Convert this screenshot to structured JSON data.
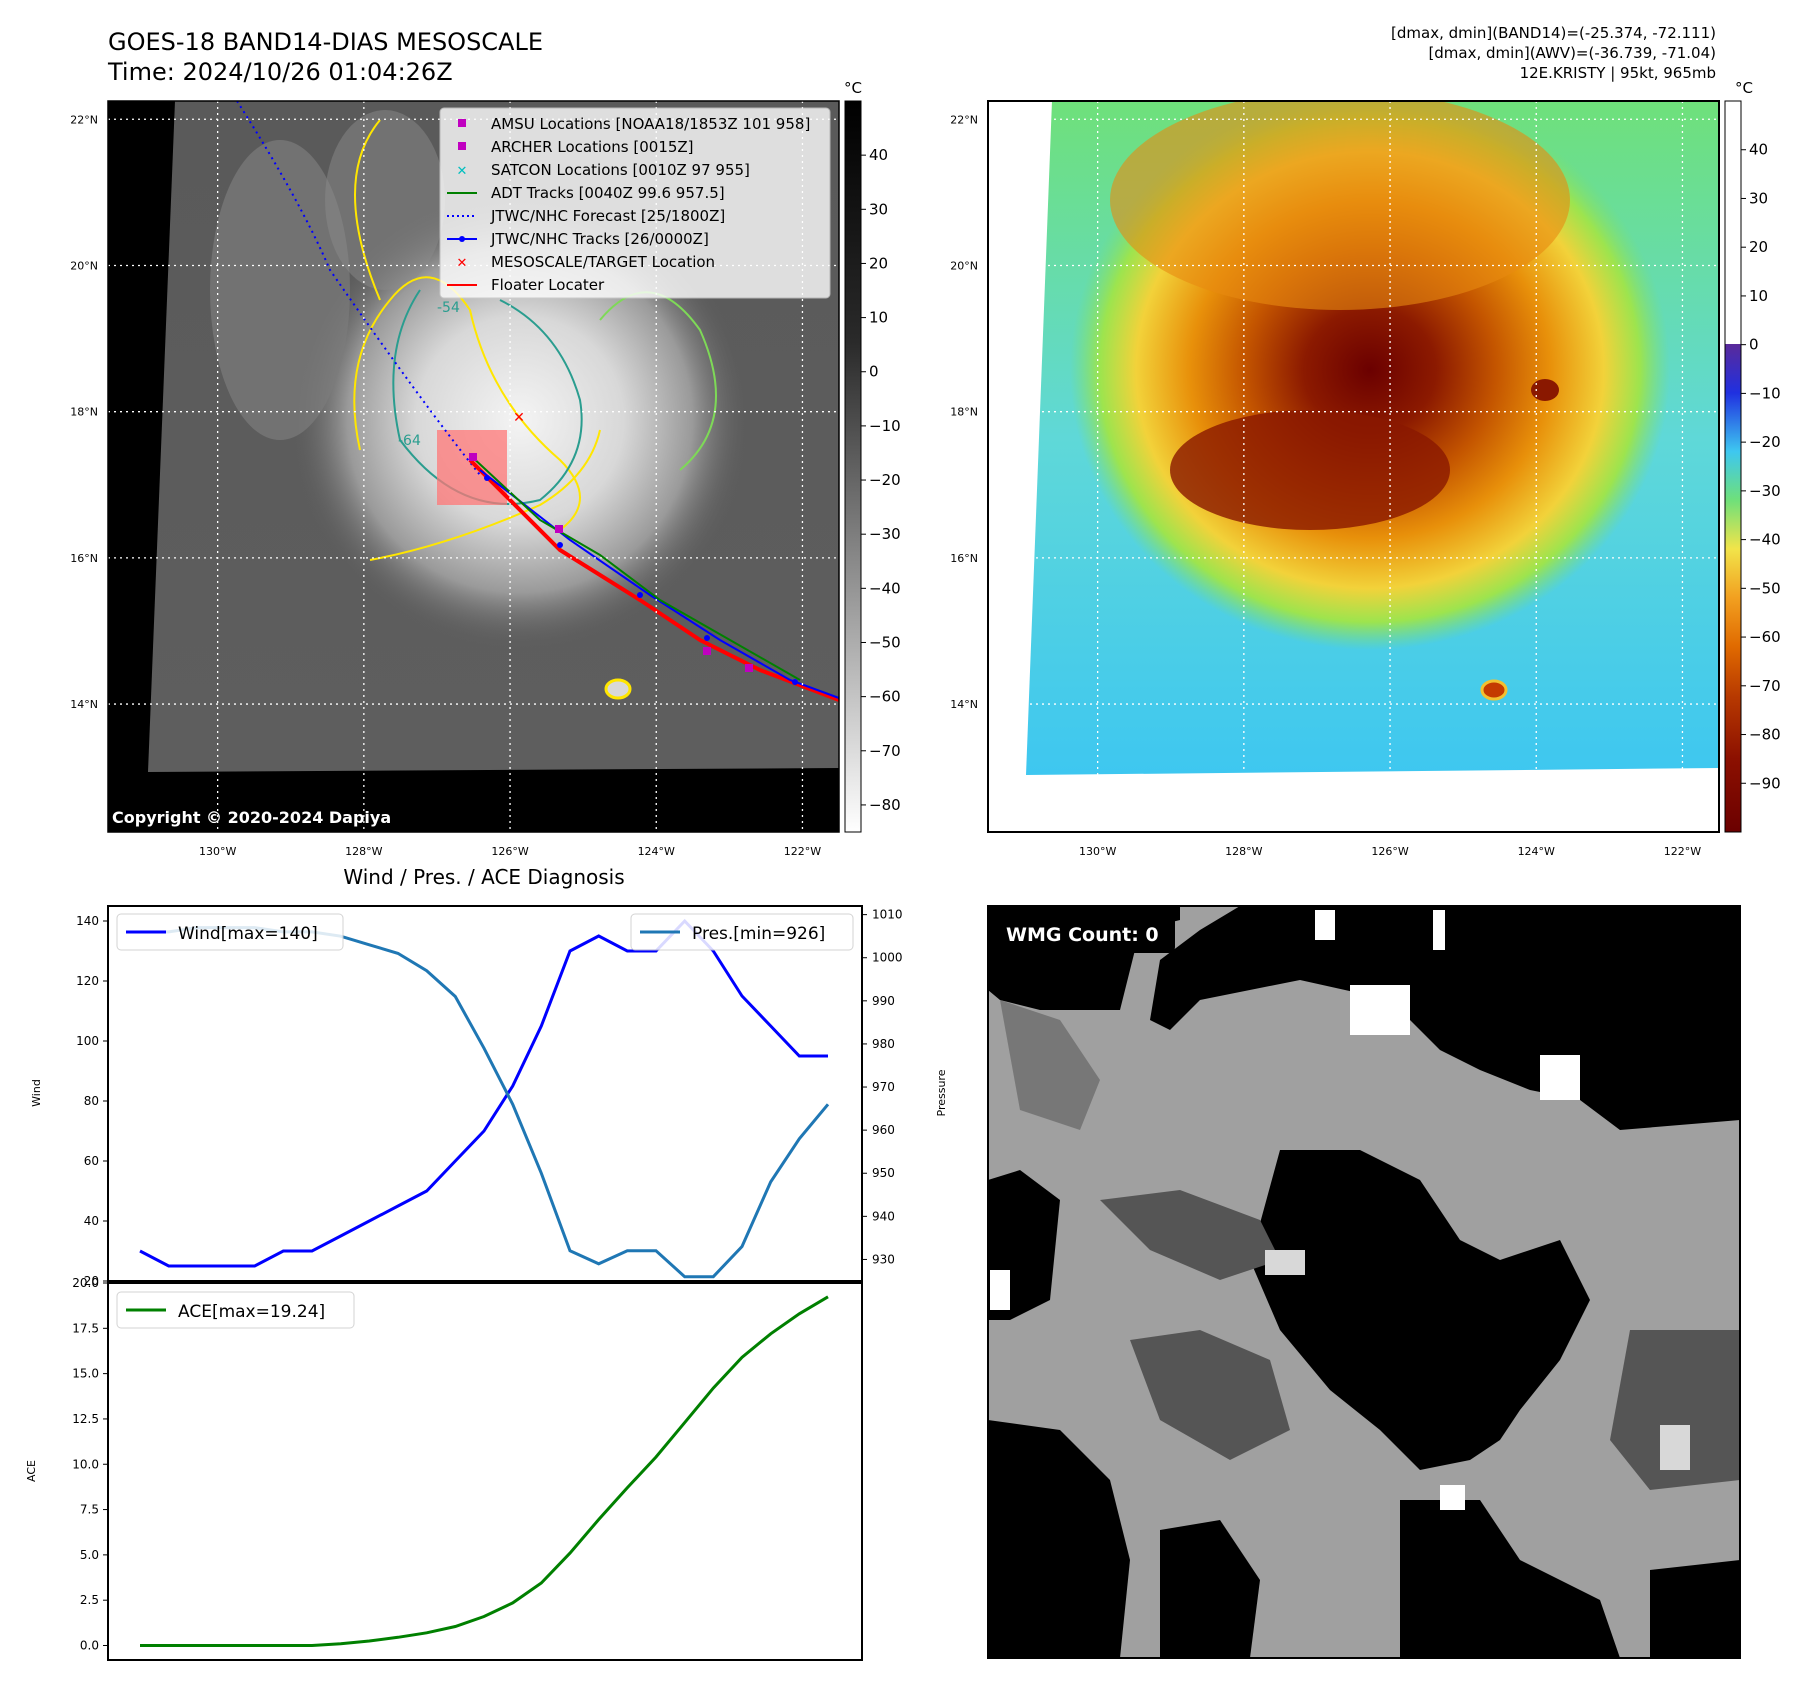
{
  "header": {
    "title_line1": "GOES-18 BAND14-DIAS MESOSCALE",
    "title_line2": "Time: 2024/10/26 01:04:26Z",
    "stats_line1": "[dmax, dmin](BAND14)=(-25.374, -72.111)",
    "stats_line2": "[dmax, dmin](AWV)=(-36.739, -71.04)",
    "stats_line3": "12E.KRISTY | 95kt, 965mb"
  },
  "ir_map": {
    "lat_labels": [
      "22°N",
      "20°N",
      "18°N",
      "16°N",
      "14°N"
    ],
    "lat_values": [
      22,
      20,
      18,
      16,
      14
    ],
    "lon_labels": [
      "130°W",
      "128°W",
      "126°W",
      "124°W",
      "122°W"
    ],
    "lon_values": [
      -130,
      -128,
      -126,
      -124,
      -122
    ],
    "copyright": "Copyright © 2020-2024 Dapiya",
    "contour_labels": [
      "-54",
      "-64"
    ],
    "target_location": {
      "lon": -126.0,
      "lat": 17.9
    },
    "legend": [
      {
        "label": "AMSU Locations [NOAA18/1853Z 101 958]",
        "color": "#c000c0",
        "marker": "square"
      },
      {
        "label": "ARCHER Locations [0015Z]",
        "color": "#c000c0",
        "marker": "square"
      },
      {
        "label": "SATCON Locations [0010Z 97 955]",
        "color": "#00bfbf",
        "marker": "x"
      },
      {
        "label": "ADT Tracks [0040Z 99.6 957.5]",
        "color": "#008000",
        "marker": "line"
      },
      {
        "label": "JTWC/NHC Forecast [25/1800Z]",
        "color": "#0000ff",
        "marker": "dotted"
      },
      {
        "label": "JTWC/NHC Tracks [26/0000Z]",
        "color": "#0000ff",
        "marker": "line-dot"
      },
      {
        "label": "MESOSCALE/TARGET Location",
        "color": "#ff0000",
        "marker": "x"
      },
      {
        "label": "Floater Locater",
        "color": "#ff0000",
        "marker": "line"
      }
    ],
    "colorbar": {
      "unit": "°C",
      "ticks": [
        "40",
        "30",
        "20",
        "10",
        "0",
        "−10",
        "−20",
        "−30",
        "−40",
        "−50",
        "−60",
        "−70",
        "−80"
      ],
      "tick_values": [
        40,
        30,
        20,
        10,
        0,
        -10,
        -20,
        -30,
        -40,
        -50,
        -60,
        -70,
        -80
      ],
      "range": [
        -85,
        50
      ]
    }
  },
  "color_map": {
    "lat_labels": [
      "22°N",
      "20°N",
      "18°N",
      "16°N",
      "14°N"
    ],
    "lat_values": [
      22,
      20,
      18,
      16,
      14
    ],
    "lon_labels": [
      "130°W",
      "128°W",
      "126°W",
      "124°W",
      "122°W"
    ],
    "lon_values": [
      -130,
      -128,
      -126,
      -124,
      -122
    ],
    "colorbar": {
      "unit": "°C",
      "ticks": [
        "40",
        "30",
        "20",
        "10",
        "0",
        "−10",
        "−20",
        "−30",
        "−40",
        "−50",
        "−60",
        "−70",
        "−80",
        "−90"
      ],
      "tick_values": [
        40,
        30,
        20,
        10,
        0,
        -10,
        -20,
        -30,
        -40,
        -50,
        -60,
        -70,
        -80,
        -90
      ],
      "range": [
        -100,
        50
      ]
    }
  },
  "chart_data": [
    {
      "type": "line",
      "title": "Wind / Pres. / ACE Diagnosis",
      "xlabel": "",
      "ylabel": "Wind",
      "ylabel_right": "Pressure",
      "x": [
        0,
        1,
        2,
        3,
        4,
        5,
        6,
        7,
        8,
        9,
        10,
        11,
        12,
        13,
        14,
        15,
        16,
        17,
        18,
        19,
        20,
        21,
        22,
        23,
        24
      ],
      "ylim": [
        20,
        145
      ],
      "ylim_right": [
        925,
        1012
      ],
      "yticks": [
        20,
        40,
        60,
        80,
        100,
        120,
        140
      ],
      "yticks_right": [
        930,
        940,
        950,
        960,
        970,
        980,
        990,
        1000,
        1010
      ],
      "series": [
        {
          "name": "Wind[max=140]",
          "axis": "left",
          "color": "#0000ff",
          "values": [
            30,
            25,
            25,
            25,
            25,
            30,
            30,
            35,
            40,
            45,
            50,
            60,
            70,
            85,
            105,
            130,
            135,
            130,
            130,
            140,
            130,
            115,
            105,
            95,
            95
          ]
        },
        {
          "name": "Pres.[min=926]",
          "axis": "right",
          "color": "#1f77b4",
          "values": [
            1006,
            1006,
            1007,
            1007,
            1007,
            1006,
            1006,
            1005,
            1003,
            1001,
            997,
            991,
            979,
            966,
            950,
            932,
            929,
            932,
            932,
            926,
            926,
            933,
            948,
            958,
            966
          ]
        }
      ]
    },
    {
      "type": "line",
      "xlabel": "",
      "ylabel": "ACE",
      "x": [
        0,
        1,
        2,
        3,
        4,
        5,
        6,
        7,
        8,
        9,
        10,
        11,
        12,
        13,
        14,
        15,
        16,
        17,
        18,
        19,
        20,
        21,
        22,
        23,
        24
      ],
      "ylim": [
        -0.8,
        20
      ],
      "yticks": [
        "0.0",
        "2.5",
        "5.0",
        "7.5",
        "10.0",
        "12.5",
        "15.0",
        "17.5",
        "20.0"
      ],
      "ytick_values": [
        0,
        2.5,
        5,
        7.5,
        10,
        12.5,
        15,
        17.5,
        20
      ],
      "series": [
        {
          "name": "ACE[max=19.24]",
          "color": "#008000",
          "values": [
            0,
            0,
            0,
            0,
            0,
            0,
            0,
            0.1,
            0.25,
            0.45,
            0.7,
            1.05,
            1.6,
            2.35,
            3.45,
            5.1,
            6.95,
            8.7,
            10.4,
            12.3,
            14.2,
            15.9,
            17.2,
            18.3,
            19.24
          ]
        }
      ]
    }
  ],
  "wmg": {
    "label": "WMG Count: 0"
  }
}
